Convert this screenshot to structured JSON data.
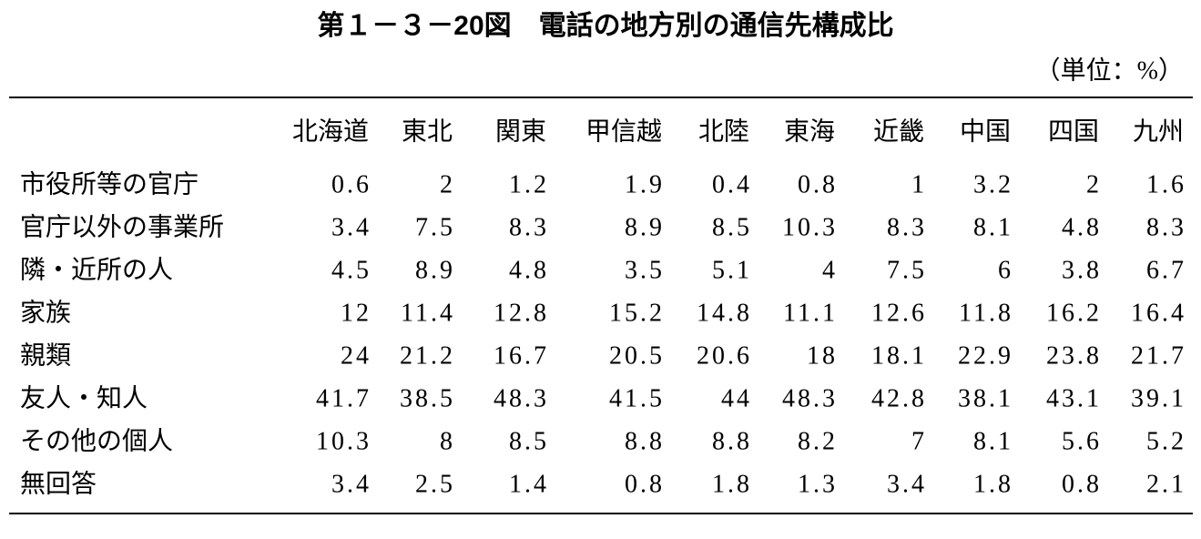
{
  "title": "第１－３－20図　電話の地方別の通信先構成比",
  "unit": "（単位：%）",
  "table": {
    "columns": [
      "北海道",
      "東北",
      "関東",
      "甲信越",
      "北陸",
      "東海",
      "近畿",
      "中国",
      "四国",
      "九州"
    ],
    "rows": [
      {
        "label": "市役所等の官庁",
        "values": [
          0.6,
          2,
          1.2,
          1.9,
          0.4,
          0.8,
          1,
          3.2,
          2,
          1.6
        ]
      },
      {
        "label": "官庁以外の事業所",
        "values": [
          3.4,
          7.5,
          8.3,
          8.9,
          8.5,
          10.3,
          8.3,
          8.1,
          4.8,
          8.3
        ]
      },
      {
        "label": "隣・近所の人",
        "values": [
          4.5,
          8.9,
          4.8,
          3.5,
          5.1,
          4,
          7.5,
          6,
          3.8,
          6.7
        ]
      },
      {
        "label": "家族",
        "values": [
          12,
          11.4,
          12.8,
          15.2,
          14.8,
          11.1,
          12.6,
          11.8,
          16.2,
          16.4
        ]
      },
      {
        "label": "親類",
        "values": [
          24,
          21.2,
          16.7,
          20.5,
          20.6,
          18,
          18.1,
          22.9,
          23.8,
          21.7
        ]
      },
      {
        "label": "友人・知人",
        "values": [
          41.7,
          38.5,
          48.3,
          41.5,
          44,
          48.3,
          42.8,
          38.1,
          43.1,
          39.1
        ]
      },
      {
        "label": "その他の個人",
        "values": [
          10.3,
          8,
          8.5,
          8.8,
          8.8,
          8.2,
          7,
          8.1,
          5.6,
          5.2
        ]
      },
      {
        "label": "無回答",
        "values": [
          3.4,
          2.5,
          1.4,
          0.8,
          1.8,
          1.3,
          3.4,
          1.8,
          0.8,
          2.1
        ]
      }
    ]
  }
}
